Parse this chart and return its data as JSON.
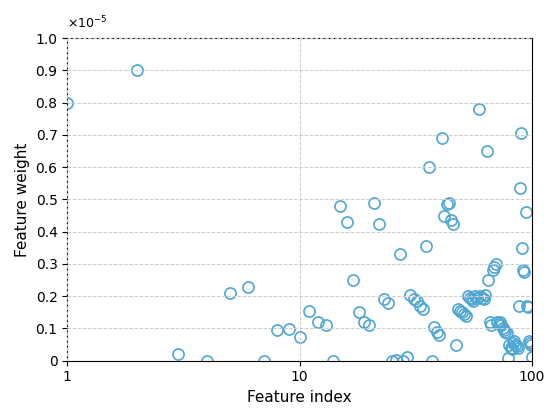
{
  "x": [
    1,
    2,
    3,
    4,
    5,
    6,
    7,
    8,
    9,
    10,
    11,
    12,
    13,
    14,
    15,
    16,
    17,
    18,
    19,
    20,
    21,
    22,
    23,
    24,
    25,
    26,
    27,
    28,
    29,
    30,
    31,
    32,
    33,
    34,
    35,
    36,
    37,
    38,
    39,
    40,
    41,
    42,
    43,
    44,
    45,
    46,
    47,
    48,
    49,
    50,
    51,
    52,
    53,
    54,
    55,
    56,
    57,
    58,
    59,
    60,
    61,
    62,
    63,
    64,
    65,
    66,
    67,
    68,
    69,
    70,
    71,
    72,
    73,
    74,
    75,
    76,
    77,
    78,
    79,
    80,
    81,
    82,
    83,
    84,
    85,
    86,
    87,
    88,
    89,
    90,
    91,
    92,
    93,
    94,
    95,
    96,
    97,
    98,
    99,
    100
  ],
  "y": [
    8e-06,
    9e-06,
    2e-07,
    0.0,
    2.1e-06,
    2.3e-06,
    0.0,
    9.5e-07,
    9.8e-07,
    7.5e-07,
    1.55e-06,
    1.2e-06,
    1.1e-06,
    0.0,
    4.8e-06,
    4.3e-06,
    2.5e-06,
    1.5e-06,
    1.2e-06,
    1.1e-06,
    4.9e-06,
    4.25e-06,
    1.9e-06,
    1.8e-06,
    0.0,
    3.5e-08,
    3.3e-06,
    0.0,
    1e-07,
    2.05e-06,
    1.9e-06,
    1.85e-06,
    1.7e-06,
    1.6e-06,
    3.55e-06,
    6e-06,
    0.0,
    1.05e-06,
    9e-07,
    8e-07,
    6.9e-06,
    4.5e-06,
    4.85e-06,
    4.9e-06,
    4.35e-06,
    4.25e-06,
    5e-07,
    1.6e-06,
    1.55e-06,
    1.5e-06,
    1.45e-06,
    1.4e-06,
    2e-06,
    1.95e-06,
    1.9e-06,
    1.85e-06,
    2e-06,
    1.95e-06,
    7.8e-06,
    2e-06,
    1.95e-06,
    1.9e-06,
    2.05e-06,
    6.5e-06,
    2.5e-06,
    1.2e-06,
    1.1e-06,
    2.8e-06,
    2.9e-06,
    3e-06,
    1.2e-06,
    1.15e-06,
    1.2e-06,
    1.1e-06,
    1e-06,
    9.5e-07,
    9e-07,
    8.5e-07,
    7e-08,
    5e-07,
    4e-07,
    3.5e-07,
    5.5e-07,
    6e-07,
    5e-07,
    4.5e-07,
    4e-07,
    1.7e-06,
    5.35e-06,
    7.05e-06,
    3.5e-06,
    2.8e-06,
    2.75e-06,
    4.6e-06,
    1.7e-06,
    1.65e-06,
    6e-07,
    5.5e-07,
    5e-07,
    1e-07
  ],
  "marker_color": "#4da6d4",
  "marker_facecolor": "none",
  "marker_size": 8,
  "marker_linewidth": 1.2,
  "title": "",
  "xlabel": "Feature index",
  "ylabel": "Feature weight",
  "xlim": [
    1,
    100
  ],
  "ylim": [
    0,
    1e-05
  ],
  "ytick_multiplier": 1e-05,
  "yticks": [
    0,
    0.1,
    0.2,
    0.3,
    0.4,
    0.5,
    0.6,
    0.7,
    0.8,
    0.9,
    1.0
  ],
  "xticks_log": [
    1,
    10,
    100
  ],
  "grid_color": "#cccccc",
  "grid_linestyle": "--",
  "background_color": "#ffffff",
  "figsize": [
    5.6,
    4.2
  ],
  "dpi": 100
}
